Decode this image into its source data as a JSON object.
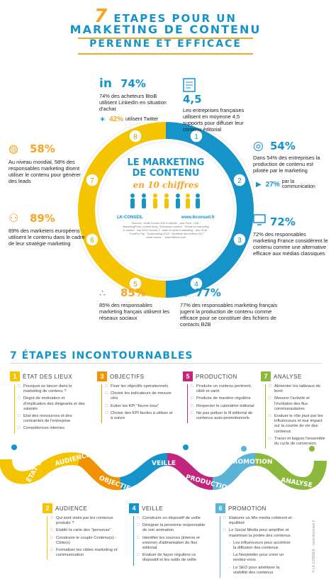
{
  "title": {
    "line1_num": "7",
    "line1_text": "ETAPES POUR UN",
    "line2": "MARKETING DE CONTENU",
    "line3": "PERENNE ET EFFICACE"
  },
  "center": {
    "title1": "LE MARKETING",
    "title2": "DE CONTENU",
    "subtitle": "en 10 chiffres",
    "brand": "LK-CONSEIL",
    "url": "www.lkconseil.fr",
    "sources_label": "Sources :",
    "sources": "étude Eclosio 2014 LinkedIn - janv 2016 - CMI / MarketingProfs Content Ahoy / Enterprise content - Trends for marketing & content - mai 2016 Conseil Z : state of content marketing - janv 2016 · · · TrustPro Tsg · Social selling 2016 · Synthèse des chiffres 2017 · crédit icones : · www.flaticon.com"
  },
  "ring_numbers": [
    "1",
    "2",
    "3",
    "4",
    "5",
    "6",
    "7",
    "8"
  ],
  "stats": {
    "linkedin": {
      "icon_text": "in",
      "value": "74%",
      "text": "74% des acheteurs BtoB utilisent LinkedIn en situation d'achat",
      "twitter_value": "42%",
      "twitter_text": "utilisent Twitter"
    },
    "supports": {
      "value": "4,5",
      "text": "Les entreprises françaises utilisent en moyenne 4,5 supports pour diffuser leur contenu éditorial"
    },
    "pilote": {
      "value": "54%",
      "text": "Dans 54% des entreprises la production de contenu est pilotée par le marketing",
      "sub_value": "27%",
      "sub_text": "par la communication"
    },
    "alternative": {
      "value": "72%",
      "text": "72% des responsables marketing France considèrent le contenu comme une alternative efficace aux médias classiques"
    },
    "contacts": {
      "value": "77%",
      "text": "77% des responsables marketing français jugent la production de contenu comme efficace pour se constituer des fichiers de contacts B2B"
    },
    "social": {
      "value": "85%",
      "text": "85% des responsables marketing français utilisent les réseaux sociaux"
    },
    "europeens": {
      "value": "89%",
      "text": "89% des marketers européens utilisent le contenu dans le cadre de leur stratégie marketing"
    },
    "mondial": {
      "value": "58%",
      "text": "Au niveau mondial, 58% des responsables marketing disent utiliser le contenu pour générer des leads"
    }
  },
  "steps_title": "7 ÉTAPES INCONTOURNABLES",
  "steps_top": [
    {
      "num": "1",
      "label": "ÉTAT DES LIEUX",
      "color": "#f5c400",
      "items": [
        "Pourquoi se lancer dans le marketing de contenu ?",
        "Degré de motivation et d'implication des dirigeants et des salariés",
        "Etat des ressources et des contraintes de l'entreprise",
        "Compétences internes"
      ]
    },
    {
      "num": "3",
      "label": "OBJECTIFS",
      "color": "#f39200",
      "items": [
        "Fixer les objectifs opérationnels",
        "Choisir les indicateurs de mesure clés",
        "Eviter les KPI \"fourre tous\"",
        "Choisir des KPI faciles à utiliser et à suivre"
      ]
    },
    {
      "num": "5",
      "label": "PRODUCTION",
      "color": "#c2257c",
      "items": [
        "Produire un contenu pertinent, ciblé et varié",
        "Produire de manière régulière",
        "Respecter le calendrier éditorial",
        "Ne pas polluer le fil éditorial de contenus auto-promotionnels"
      ]
    },
    {
      "num": "7",
      "label": "ANALYSE",
      "color": "#8cb83c",
      "items": [
        "Alimenter les tableaux de bord",
        "Mesurer l'activité et l'évolution des flux communautaires",
        "Evaluer le rôle joué par les influenceurs et leur impact sur la courbe de vie des contenus",
        "Tracer et baguer l'ensemble du cycle de conversion"
      ]
    }
  ],
  "wave_labels": [
    "ÉTAT DES LIEUX",
    "AUDIENCE",
    "OBJECTIFS",
    "VEILLE",
    "PRODUCTION",
    "PROMOTION",
    "ANALYSE"
  ],
  "steps_bottom": [
    {
      "num": "2",
      "label": "AUDIENCE",
      "color": "#f5c400",
      "items": [
        "Qui sont visés par les contenus produits ?",
        "Etablir la carte des \"personas\"",
        "Construire le couple Contenu(s) - Cible(s)",
        "Formaliser les cibles marketing et communication"
      ]
    },
    {
      "num": "4",
      "label": "VEILLE",
      "color": "#1693c9",
      "items": [
        "Construire un dispositif de veille",
        "Désigner la personne responsable de son animation",
        "Identifier les sources (interne et externe) d'alimentation du flux éditorial",
        "Evaluer de façon régulière ce dispositif et les outils de veille"
      ]
    },
    {
      "num": "6",
      "label": "PROMOTION",
      "color": "#5ab4d6",
      "items": [
        "Elaborer un Mix media cohérent et équilibré",
        "Le Social Media pour amplifier et maximiser la portée des contenus"
      ],
      "subs": [
        "Les influenceurs pour accélérer la diffusion des contenus",
        "La Newsletter pour créer un rendez-vous",
        "Le SEO pour améliorer la visibilité des contenus"
      ]
    }
  ],
  "footer_credit": "© LK-CONSEIL",
  "footer_url": "www.lkconseil.fr",
  "colors": {
    "blue": "#1693c9",
    "yellow": "#f5c400",
    "orange": "#f39200",
    "pink": "#c2257c",
    "green": "#8cb83c",
    "lightblue": "#5ab4d6"
  }
}
